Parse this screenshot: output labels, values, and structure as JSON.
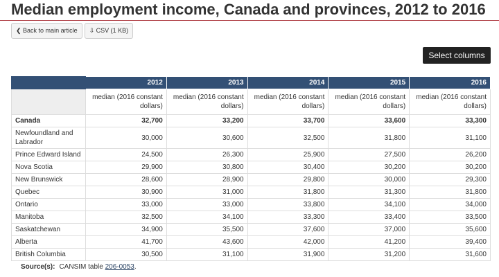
{
  "header": {
    "title": "Median employment income, Canada and provinces, 2012 to 2016"
  },
  "buttons": {
    "back": "Back to main article",
    "csv": "CSV (1 KB)",
    "select": "Select columns"
  },
  "table": {
    "columns": [
      "2012",
      "2013",
      "2014",
      "2015",
      "2016"
    ],
    "units": [
      "median (2016 constant dollars)",
      "median (2016 constant dollars)",
      "median (2016 constant dollars)",
      "median (2016 constant dollars)",
      "median (2016 constant dollars)"
    ],
    "rows": [
      [
        "Canada",
        "32,700",
        "33,200",
        "33,700",
        "33,600",
        "33,300"
      ],
      [
        "Newfoundland and Labrador",
        "30,000",
        "30,600",
        "32,500",
        "31,800",
        "31,100"
      ],
      [
        "Prince Edward Island",
        "24,500",
        "26,300",
        "25,900",
        "27,500",
        "26,200"
      ],
      [
        "Nova Scotia",
        "29,900",
        "30,800",
        "30,400",
        "30,200",
        "30,200"
      ],
      [
        "New Brunswick",
        "28,600",
        "28,900",
        "29,800",
        "30,000",
        "29,300"
      ],
      [
        "Quebec",
        "30,900",
        "31,000",
        "31,800",
        "31,300",
        "31,800"
      ],
      [
        "Ontario",
        "33,000",
        "33,000",
        "33,800",
        "34,100",
        "34,000"
      ],
      [
        "Manitoba",
        "32,500",
        "34,100",
        "33,300",
        "33,400",
        "33,500"
      ],
      [
        "Saskatchewan",
        "34,900",
        "35,500",
        "37,600",
        "37,000",
        "35,600"
      ],
      [
        "Alberta",
        "41,700",
        "43,600",
        "42,000",
        "41,200",
        "39,400"
      ],
      [
        "British Columbia",
        "30,500",
        "31,100",
        "31,900",
        "31,200",
        "31,600"
      ]
    ]
  },
  "source": {
    "label": "Source(s):",
    "text": "CANSIM table",
    "link": "206-0053",
    "end": "."
  }
}
